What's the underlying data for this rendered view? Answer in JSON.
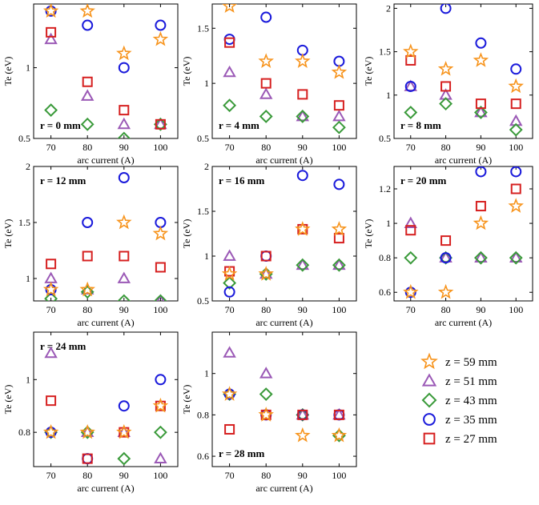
{
  "colors": {
    "z59": "#f7941d",
    "z51": "#9b59b6",
    "z43": "#3a9a3a",
    "z35": "#1a1adb",
    "z27": "#d62020"
  },
  "legend": [
    {
      "key": "z59",
      "label": "z = 59 mm",
      "marker": "star"
    },
    {
      "key": "z51",
      "label": "z = 51 mm",
      "marker": "triangle"
    },
    {
      "key": "z43",
      "label": "z = 43 mm",
      "marker": "diamond"
    },
    {
      "key": "z35",
      "label": "z = 35 mm",
      "marker": "circle"
    },
    {
      "key": "z27",
      "label": "z = 27 mm",
      "marker": "square"
    }
  ],
  "chart_data": [
    {
      "type": "scatter",
      "title": "r = 0 mm",
      "xlabel": "arc current (A)",
      "ylabel": "Te (eV)",
      "categories": [
        "70",
        "80",
        "90",
        "100"
      ],
      "ylim": [
        0.5,
        1.45
      ],
      "yticks": [
        0.5,
        1,
        1.5
      ],
      "series": [
        {
          "key": "z59",
          "values": [
            1.4,
            1.4,
            1.1,
            1.2
          ]
        },
        {
          "key": "z51",
          "values": [
            1.2,
            0.8,
            0.6,
            0.6
          ]
        },
        {
          "key": "z43",
          "values": [
            0.7,
            0.6,
            0.5,
            0.6
          ]
        },
        {
          "key": "z35",
          "values": [
            1.4,
            1.3,
            1.0,
            1.3
          ]
        },
        {
          "key": "z27",
          "values": [
            1.25,
            0.9,
            0.7,
            0.6
          ]
        }
      ]
    },
    {
      "type": "scatter",
      "title": "r = 4 mm",
      "xlabel": "arc current (A)",
      "ylabel": "Te (eV)",
      "categories": [
        "70",
        "80",
        "90",
        "100"
      ],
      "ylim": [
        0.5,
        1.72
      ],
      "yticks": [
        0.5,
        1,
        1.5
      ],
      "series": [
        {
          "key": "z59",
          "values": [
            1.7,
            1.2,
            1.2,
            1.1
          ]
        },
        {
          "key": "z51",
          "values": [
            1.1,
            0.9,
            0.7,
            0.7
          ]
        },
        {
          "key": "z43",
          "values": [
            0.8,
            0.7,
            0.7,
            0.6
          ]
        },
        {
          "key": "z35",
          "values": [
            1.4,
            1.6,
            1.3,
            1.2
          ]
        },
        {
          "key": "z27",
          "values": [
            1.37,
            1.0,
            0.9,
            0.8
          ]
        }
      ]
    },
    {
      "type": "scatter",
      "title": "r = 8 mm",
      "xlabel": "arc current (A)",
      "ylabel": "Te (eV)",
      "categories": [
        "70",
        "80",
        "90",
        "100"
      ],
      "ylim": [
        0.5,
        2.05
      ],
      "yticks": [
        0.5,
        1,
        1.5,
        2
      ],
      "series": [
        {
          "key": "z59",
          "values": [
            1.5,
            1.3,
            1.4,
            1.1
          ]
        },
        {
          "key": "z51",
          "values": [
            1.1,
            1.0,
            0.8,
            0.7
          ]
        },
        {
          "key": "z43",
          "values": [
            0.8,
            0.9,
            0.8,
            0.6
          ]
        },
        {
          "key": "z35",
          "values": [
            1.1,
            2.0,
            1.6,
            1.3
          ]
        },
        {
          "key": "z27",
          "values": [
            1.4,
            1.1,
            0.9,
            0.9
          ]
        }
      ]
    },
    {
      "type": "scatter",
      "title": "r = 12 mm",
      "xlabel": "arc current (A)",
      "ylabel": "Te (eV)",
      "categories": [
        "70",
        "80",
        "90",
        "100"
      ],
      "ylim": [
        0.8,
        2.0
      ],
      "yticks": [
        1,
        1.5,
        2
      ],
      "series": [
        {
          "key": "z59",
          "values": [
            0.9,
            0.9,
            1.5,
            1.4
          ]
        },
        {
          "key": "z51",
          "values": [
            1.0,
            0.9,
            1.0,
            0.8
          ]
        },
        {
          "key": "z43",
          "values": [
            0.82,
            0.88,
            0.8,
            0.8
          ]
        },
        {
          "key": "z35",
          "values": [
            0.9,
            1.5,
            1.9,
            1.5
          ]
        },
        {
          "key": "z27",
          "values": [
            1.13,
            1.2,
            1.2,
            1.1
          ]
        }
      ]
    },
    {
      "type": "scatter",
      "title": "r = 16 mm",
      "xlabel": "arc current (A)",
      "ylabel": "Te (eV)",
      "categories": [
        "70",
        "80",
        "90",
        "100"
      ],
      "ylim": [
        0.5,
        2.0
      ],
      "yticks": [
        0.5,
        1,
        1.5,
        2
      ],
      "series": [
        {
          "key": "z59",
          "values": [
            0.8,
            0.8,
            1.3,
            1.3
          ]
        },
        {
          "key": "z51",
          "values": [
            1.0,
            0.8,
            0.9,
            0.9
          ]
        },
        {
          "key": "z43",
          "values": [
            0.7,
            0.8,
            0.9,
            0.9
          ]
        },
        {
          "key": "z35",
          "values": [
            0.6,
            1.0,
            1.9,
            1.8
          ]
        },
        {
          "key": "z27",
          "values": [
            0.83,
            1.0,
            1.3,
            1.2
          ]
        }
      ]
    },
    {
      "type": "scatter",
      "title": "r = 20 mm",
      "xlabel": "arc current (A)",
      "ylabel": "Te (eV)",
      "categories": [
        "70",
        "80",
        "90",
        "100"
      ],
      "ylim": [
        0.55,
        1.33
      ],
      "yticks": [
        0.6,
        0.8,
        1,
        1.2
      ],
      "series": [
        {
          "key": "z59",
          "values": [
            0.6,
            0.6,
            1.0,
            1.1
          ]
        },
        {
          "key": "z51",
          "values": [
            1.0,
            0.8,
            0.8,
            0.8
          ]
        },
        {
          "key": "z43",
          "values": [
            0.8,
            0.8,
            0.8,
            0.8
          ]
        },
        {
          "key": "z35",
          "values": [
            0.6,
            0.8,
            1.3,
            1.3
          ]
        },
        {
          "key": "z27",
          "values": [
            0.96,
            0.9,
            1.1,
            1.2
          ]
        }
      ]
    },
    {
      "type": "scatter",
      "title": "r = 24 mm",
      "xlabel": "arc current (A)",
      "ylabel": "Te (eV)",
      "categories": [
        "70",
        "80",
        "90",
        "100"
      ],
      "ylim": [
        0.67,
        1.18
      ],
      "yticks": [
        0.8,
        1
      ],
      "series": [
        {
          "key": "z59",
          "values": [
            0.8,
            0.8,
            0.8,
            0.9
          ]
        },
        {
          "key": "z51",
          "values": [
            1.1,
            0.8,
            0.8,
            0.7
          ]
        },
        {
          "key": "z43",
          "values": [
            0.8,
            0.8,
            0.7,
            0.8
          ]
        },
        {
          "key": "z35",
          "values": [
            0.8,
            0.7,
            0.9,
            1.0
          ]
        },
        {
          "key": "z27",
          "values": [
            0.92,
            0.7,
            0.8,
            0.9
          ]
        }
      ]
    },
    {
      "type": "scatter",
      "title": "r = 28 mm",
      "xlabel": "arc current (A)",
      "ylabel": "Te (eV)",
      "categories": [
        "70",
        "80",
        "90",
        "100"
      ],
      "ylim": [
        0.55,
        1.2
      ],
      "yticks": [
        0.6,
        0.8,
        1
      ],
      "series": [
        {
          "key": "z59",
          "values": [
            0.9,
            0.8,
            0.7,
            0.7
          ]
        },
        {
          "key": "z51",
          "values": [
            1.1,
            1.0,
            0.8,
            0.8
          ]
        },
        {
          "key": "z43",
          "values": [
            0.9,
            0.9,
            0.8,
            0.7
          ]
        },
        {
          "key": "z35",
          "values": [
            0.9,
            0.8,
            0.8,
            0.8
          ]
        },
        {
          "key": "z27",
          "values": [
            0.73,
            0.8,
            0.8,
            0.8
          ]
        }
      ]
    }
  ]
}
